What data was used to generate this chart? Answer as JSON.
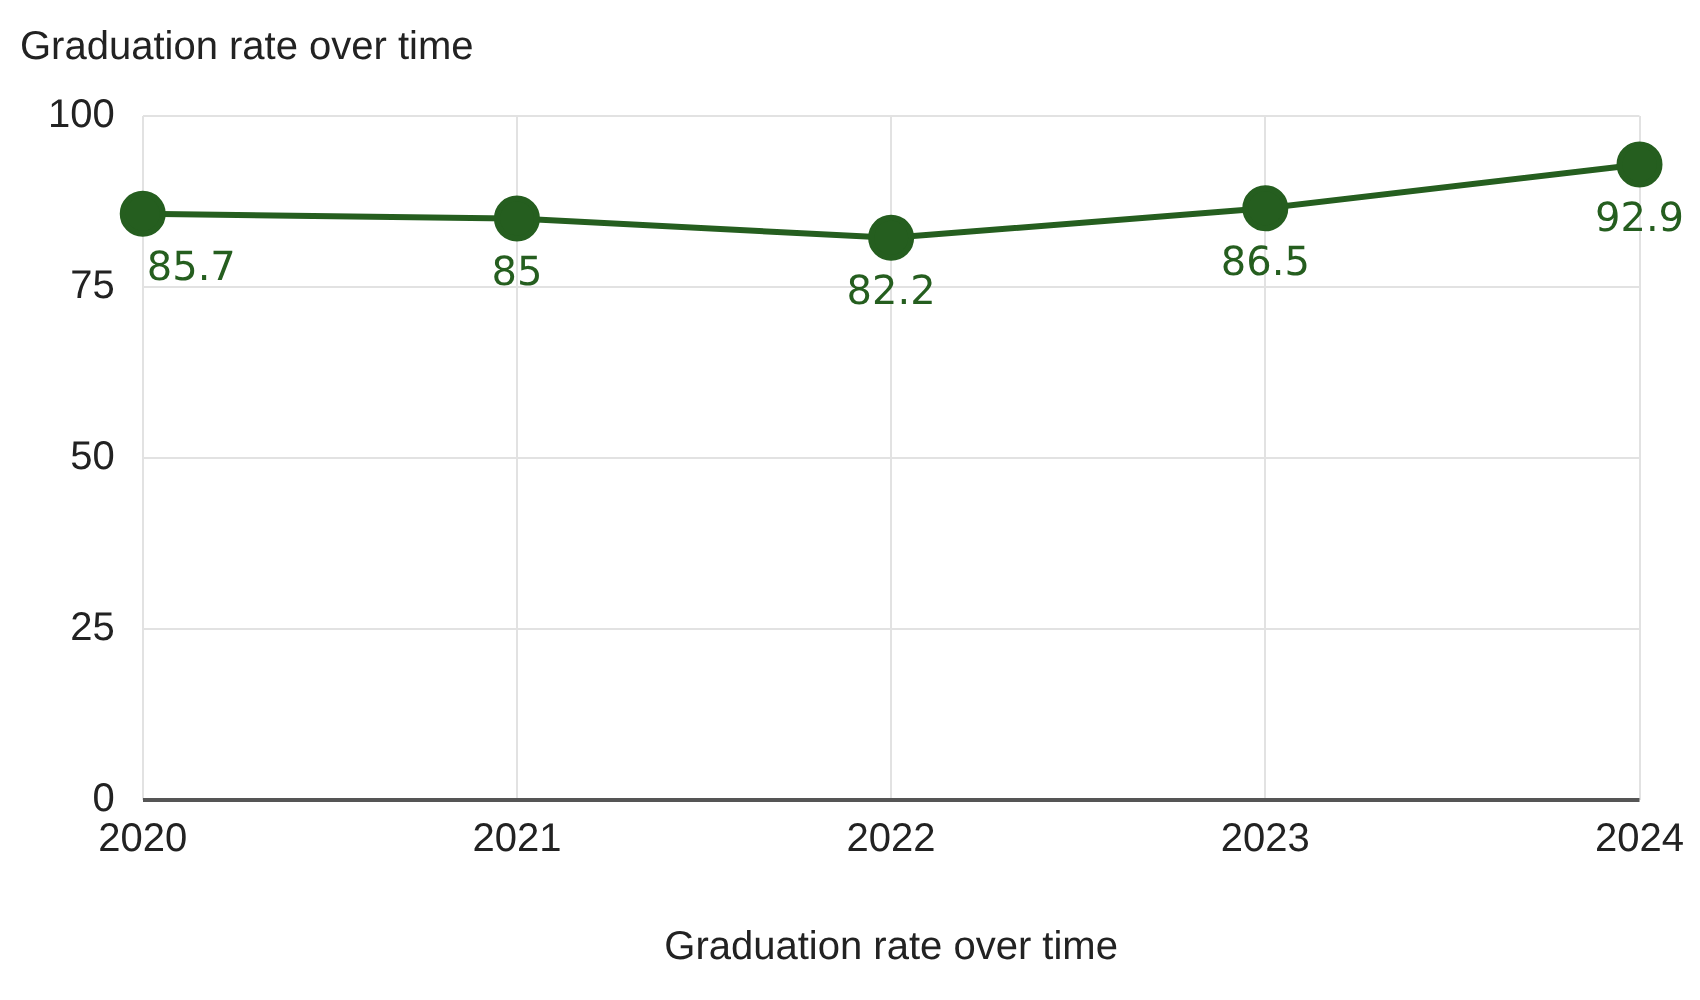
{
  "chart_data": {
    "type": "line",
    "title": "Graduation rate over time",
    "xlabel": "Graduation rate over time",
    "categories": [
      "2020",
      "2021",
      "2022",
      "2023",
      "2024"
    ],
    "series": [
      {
        "color": "#255e1f",
        "values": [
          85.7,
          85,
          82.2,
          86.5,
          92.9
        ]
      }
    ],
    "ylim": [
      0,
      100
    ],
    "yticks": [
      0,
      25,
      50,
      75,
      100
    ],
    "grid": true,
    "legend": false,
    "marker": "circle",
    "line_style": "solid",
    "data_labels": true
  }
}
